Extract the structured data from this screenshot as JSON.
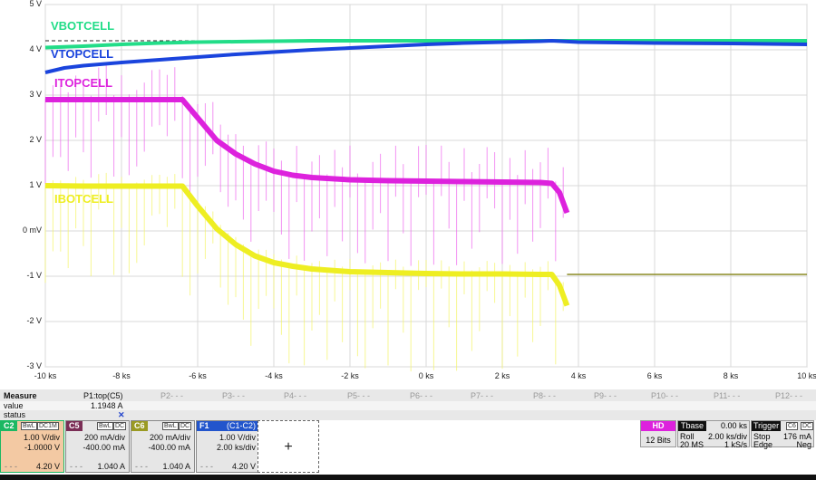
{
  "chart_data": {
    "type": "line",
    "title": "",
    "xlabel": "",
    "ylabel": "",
    "x_ticks": [
      "-10 ks",
      "-8 ks",
      "-6 ks",
      "-4 ks",
      "-2 ks",
      "0 ks",
      "2 ks",
      "4 ks",
      "6 ks",
      "8 ks",
      "10 ks"
    ],
    "y_ticks": [
      "5 V",
      "4 V",
      "3 V",
      "2 V",
      "1 V",
      "0 mV",
      "-1 V",
      "-2 V",
      "-3 V"
    ],
    "xlim": [
      -10,
      10
    ],
    "ylim": [
      -3,
      5
    ],
    "series": [
      {
        "name": "VBOTCELL",
        "color": "#22dd88",
        "x": [
          -10,
          -9,
          -8,
          -7,
          -6,
          -5,
          -4,
          -3,
          -2,
          -1,
          0,
          1,
          2,
          3,
          3.3,
          4,
          6,
          8,
          10
        ],
        "y": [
          4.05,
          4.08,
          4.12,
          4.15,
          4.17,
          4.18,
          4.19,
          4.2,
          4.2,
          4.2,
          4.2,
          4.2,
          4.2,
          4.2,
          4.2,
          4.2,
          4.2,
          4.2,
          4.2
        ]
      },
      {
        "name": "VTOPCELL",
        "color": "#1a44dd",
        "x": [
          -10,
          -9.5,
          -9,
          -8,
          -7,
          -6,
          -5,
          -4,
          -3,
          -2,
          -1,
          0,
          1,
          2,
          3,
          3.3,
          4,
          6,
          8,
          10
        ],
        "y": [
          3.5,
          3.6,
          3.65,
          3.72,
          3.78,
          3.84,
          3.9,
          3.95,
          4.0,
          4.04,
          4.08,
          4.12,
          4.15,
          4.17,
          4.19,
          4.2,
          4.17,
          4.15,
          4.14,
          4.12
        ]
      },
      {
        "name": "ITOPCELL",
        "color": "#dd22dd",
        "x": [
          -10,
          -9,
          -8,
          -7,
          -6.4,
          -6,
          -5.5,
          -5,
          -4.5,
          -4,
          -3.5,
          -3,
          -2,
          -1,
          0,
          1,
          2,
          3,
          3.3,
          3.5,
          3.7
        ],
        "y": [
          2.9,
          2.9,
          2.9,
          2.9,
          2.9,
          2.5,
          2.0,
          1.7,
          1.48,
          1.32,
          1.23,
          1.18,
          1.13,
          1.11,
          1.1,
          1.09,
          1.08,
          1.07,
          1.05,
          0.85,
          0.4
        ]
      },
      {
        "name": "IBOTCELL",
        "color": "#eeee22",
        "x": [
          -10,
          -9,
          -8,
          -7,
          -6.4,
          -6,
          -5.5,
          -5,
          -4.5,
          -4,
          -3.5,
          -3,
          -2,
          -1,
          0,
          1,
          2,
          3,
          3.3,
          3.5,
          3.7
        ],
        "y": [
          1.0,
          0.99,
          0.99,
          0.99,
          0.99,
          0.55,
          0.05,
          -0.3,
          -0.55,
          -0.7,
          -0.78,
          -0.84,
          -0.9,
          -0.92,
          -0.94,
          -0.95,
          -0.95,
          -0.96,
          -0.96,
          -1.2,
          -1.65
        ]
      },
      {
        "name": "baseline",
        "color": "#8a8a22",
        "x": [
          3.7,
          10
        ],
        "y": [
          -0.96,
          -0.96
        ]
      }
    ],
    "trace_labels": [
      "VBOTCELL",
      "VTOPCELL",
      "ITOPCELL",
      "IBOTCELL"
    ]
  },
  "measure": {
    "label": "Measure",
    "value_label": "value",
    "status_label": "status",
    "slots": [
      "P1:top(C5)",
      "P2- - -",
      "P3- - -",
      "P4- - -",
      "P5- - -",
      "P6- - -",
      "P7- - -",
      "P8- - -",
      "P9- - -",
      "P10- - -",
      "P11- - -",
      "P12- - -"
    ],
    "p1_value": "1.1948 A",
    "p1_status": "✕"
  },
  "channels": [
    {
      "tag": "C2",
      "badges": [
        "BwL",
        "DC1M"
      ],
      "line1": "1.00 V/div",
      "line2": "-1.0000 V",
      "readout": "4.20 V",
      "color": "#1bb863",
      "bg": "#f3c9a3"
    },
    {
      "tag": "C5",
      "badges": [
        "BwL",
        "DC"
      ],
      "line1": "200 mA/div",
      "line2": "-400.00 mA",
      "readout": "1.040 A",
      "color": "#7a2d55",
      "bg": "#e6e6e6"
    },
    {
      "tag": "C6",
      "badges": [
        "BwL",
        "DC"
      ],
      "line1": "200 mA/div",
      "line2": "-400.00 mA",
      "readout": "1.040 A",
      "color": "#9a9a22",
      "bg": "#e6e6e6"
    },
    {
      "tag": "F1",
      "badges": [
        "(C1-C2)"
      ],
      "line1": "1.00 V/div",
      "line2": "2.00 ks/div",
      "readout": "4.20 V",
      "color": "#2255cc",
      "bg": "#e6e6e6"
    }
  ],
  "add_button": "+",
  "hd": {
    "label": "HD",
    "bits": "12 Bits"
  },
  "tbase": {
    "label": "Tbase",
    "value": "0.00 ks",
    "mode": "Roll",
    "div": "2.00 ks/div",
    "ms": "20 MS",
    "rate": "1 kS/s"
  },
  "trigger": {
    "label": "Trigger",
    "badges": [
      "C6",
      "DC"
    ],
    "state": "Stop",
    "level": "176 mA",
    "type": "Edge",
    "slope": "Neg"
  }
}
